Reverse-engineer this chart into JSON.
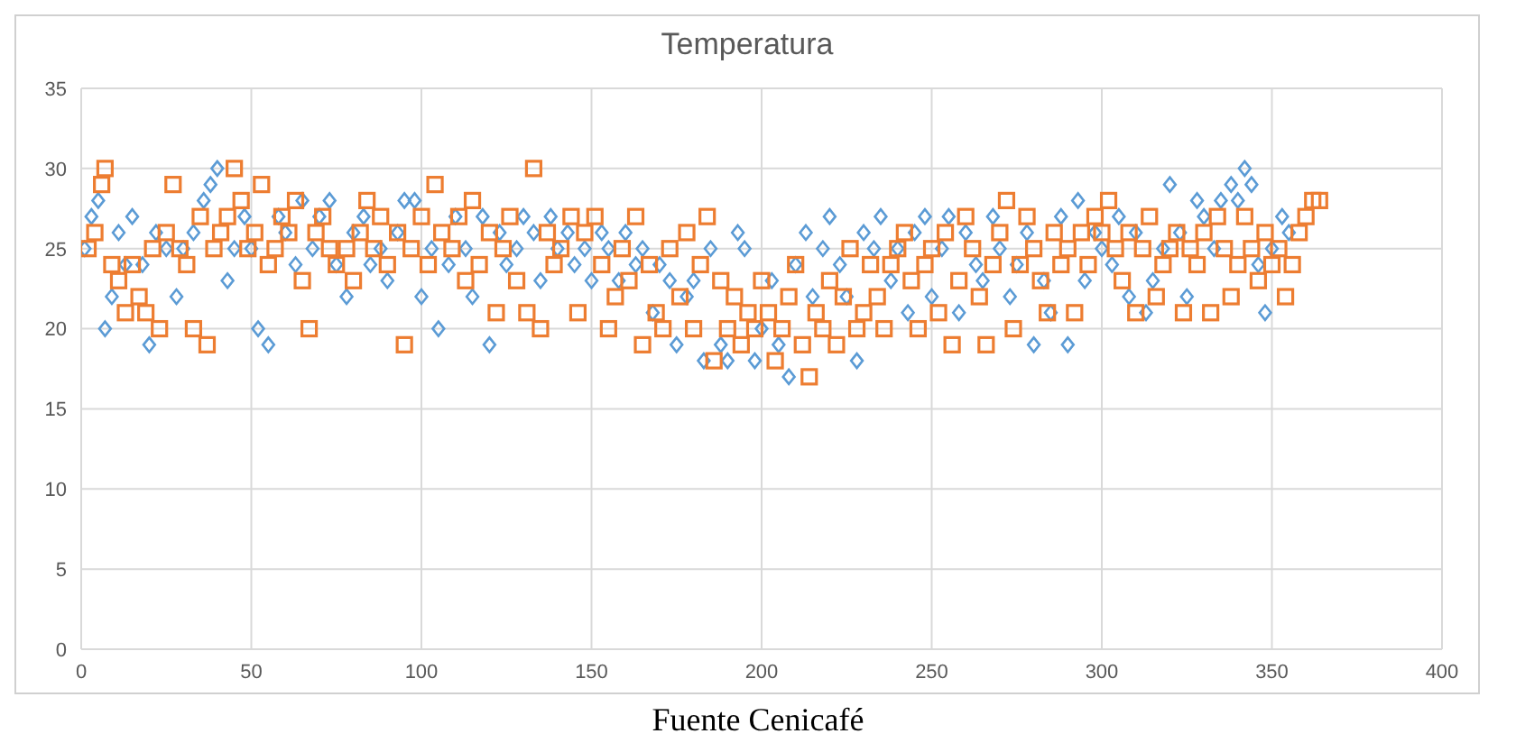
{
  "chart_data": {
    "type": "scatter",
    "title": "Temperatura",
    "annotations": [
      "Fuente Cenicafé"
    ],
    "xlim": [
      0,
      400
    ],
    "xticks": [
      0,
      50,
      100,
      150,
      200,
      250,
      300,
      350,
      400
    ],
    "ylim": [
      0,
      35
    ],
    "yticks": [
      0,
      5,
      10,
      15,
      20,
      25,
      30,
      35
    ],
    "grid": true,
    "series": [
      {
        "color": "#5b9bd5",
        "marker": "diamond",
        "x": [
          1,
          3,
          5,
          7,
          9,
          11,
          13,
          15,
          18,
          20,
          22,
          25,
          28,
          30,
          33,
          36,
          38,
          40,
          43,
          45,
          48,
          50,
          52,
          55,
          58,
          60,
          63,
          65,
          68,
          70,
          73,
          75,
          78,
          80,
          83,
          85,
          88,
          90,
          93,
          95,
          98,
          100,
          103,
          105,
          108,
          110,
          113,
          115,
          118,
          120,
          123,
          125,
          128,
          130,
          133,
          135,
          138,
          140,
          143,
          145,
          148,
          150,
          153,
          155,
          158,
          160,
          163,
          165,
          168,
          170,
          173,
          175,
          178,
          180,
          183,
          185,
          188,
          190,
          193,
          195,
          198,
          200,
          203,
          205,
          208,
          210,
          213,
          215,
          218,
          220,
          223,
          225,
          228,
          230,
          233,
          235,
          238,
          240,
          243,
          245,
          248,
          250,
          253,
          255,
          258,
          260,
          263,
          265,
          268,
          270,
          273,
          275,
          278,
          280,
          283,
          285,
          288,
          290,
          293,
          295,
          298,
          300,
          303,
          305,
          308,
          310,
          313,
          315,
          318,
          320,
          323,
          325,
          328,
          330,
          333,
          335,
          338,
          340,
          342,
          344,
          346,
          348,
          350,
          353,
          355
        ],
        "values": [
          25,
          27,
          28,
          20,
          22,
          26,
          24,
          27,
          24,
          19,
          26,
          25,
          22,
          25,
          26,
          28,
          29,
          30,
          23,
          25,
          27,
          25,
          20,
          19,
          27,
          26,
          24,
          28,
          25,
          27,
          28,
          24,
          22,
          26,
          27,
          24,
          25,
          23,
          26,
          28,
          28,
          22,
          25,
          20,
          24,
          27,
          25,
          22,
          27,
          19,
          26,
          24,
          25,
          27,
          26,
          23,
          27,
          25,
          26,
          24,
          25,
          23,
          26,
          25,
          23,
          26,
          24,
          25,
          21,
          24,
          23,
          19,
          22,
          23,
          18,
          25,
          19,
          18,
          26,
          25,
          18,
          20,
          23,
          19,
          17,
          24,
          26,
          22,
          25,
          27,
          24,
          22,
          18,
          26,
          25,
          27,
          23,
          25,
          21,
          26,
          27,
          22,
          25,
          27,
          21,
          26,
          24,
          23,
          27,
          25,
          22,
          24,
          26,
          19,
          23,
          21,
          27,
          19,
          28,
          23,
          26,
          25,
          24,
          27,
          22,
          26,
          21,
          23,
          25,
          29,
          26,
          22,
          28,
          27,
          25,
          28,
          29,
          28,
          30,
          29,
          24,
          21,
          25,
          27,
          26
        ]
      },
      {
        "color": "#ed7d31",
        "marker": "square",
        "x": [
          2,
          4,
          6,
          7,
          9,
          11,
          13,
          15,
          17,
          19,
          21,
          23,
          25,
          27,
          29,
          31,
          33,
          35,
          37,
          39,
          41,
          43,
          45,
          47,
          49,
          51,
          53,
          55,
          57,
          59,
          61,
          63,
          65,
          67,
          69,
          71,
          73,
          75,
          78,
          80,
          82,
          84,
          86,
          88,
          90,
          93,
          95,
          97,
          100,
          102,
          104,
          106,
          109,
          111,
          113,
          115,
          117,
          120,
          122,
          124,
          126,
          128,
          131,
          133,
          135,
          137,
          139,
          141,
          144,
          146,
          148,
          151,
          153,
          155,
          157,
          159,
          161,
          163,
          165,
          167,
          169,
          171,
          173,
          176,
          178,
          180,
          182,
          184,
          186,
          188,
          190,
          192,
          194,
          196,
          198,
          200,
          202,
          204,
          206,
          208,
          210,
          212,
          214,
          216,
          218,
          220,
          222,
          224,
          226,
          228,
          230,
          232,
          234,
          236,
          238,
          240,
          242,
          244,
          246,
          248,
          250,
          252,
          254,
          256,
          258,
          260,
          262,
          264,
          266,
          268,
          270,
          272,
          274,
          276,
          278,
          280,
          282,
          284,
          286,
          288,
          290,
          292,
          294,
          296,
          298,
          300,
          302,
          304,
          306,
          308,
          310,
          312,
          314,
          316,
          318,
          320,
          322,
          324,
          326,
          328,
          330,
          332,
          334,
          336,
          338,
          340,
          342,
          344,
          346,
          348,
          350,
          352,
          354,
          356,
          358,
          360,
          362,
          364
        ],
        "values": [
          25,
          26,
          29,
          30,
          24,
          23,
          21,
          24,
          22,
          21,
          25,
          20,
          26,
          29,
          25,
          24,
          20,
          27,
          19,
          25,
          26,
          27,
          30,
          28,
          25,
          26,
          29,
          24,
          25,
          27,
          26,
          28,
          23,
          20,
          26,
          27,
          25,
          24,
          25,
          23,
          26,
          28,
          25,
          27,
          24,
          26,
          19,
          25,
          27,
          24,
          29,
          26,
          25,
          27,
          23,
          28,
          24,
          26,
          21,
          25,
          27,
          23,
          21,
          30,
          20,
          26,
          24,
          25,
          27,
          21,
          26,
          27,
          24,
          20,
          22,
          25,
          23,
          27,
          19,
          24,
          21,
          20,
          25,
          22,
          26,
          20,
          24,
          27,
          18,
          23,
          20,
          22,
          19,
          21,
          20,
          23,
          21,
          18,
          20,
          22,
          24,
          19,
          17,
          21,
          20,
          23,
          19,
          22,
          25,
          20,
          21,
          24,
          22,
          20,
          24,
          25,
          26,
          23,
          20,
          24,
          25,
          21,
          26,
          19,
          23,
          27,
          25,
          22,
          19,
          24,
          26,
          28,
          20,
          24,
          27,
          25,
          23,
          21,
          26,
          24,
          25,
          21,
          26,
          24,
          27,
          26,
          28,
          25,
          23,
          26,
          21,
          25,
          27,
          22,
          24,
          25,
          26,
          21,
          25,
          24,
          26,
          21,
          27,
          25,
          22,
          24,
          27,
          25,
          23,
          26,
          24,
          25,
          22,
          24,
          26,
          27,
          28,
          28
        ]
      }
    ]
  }
}
